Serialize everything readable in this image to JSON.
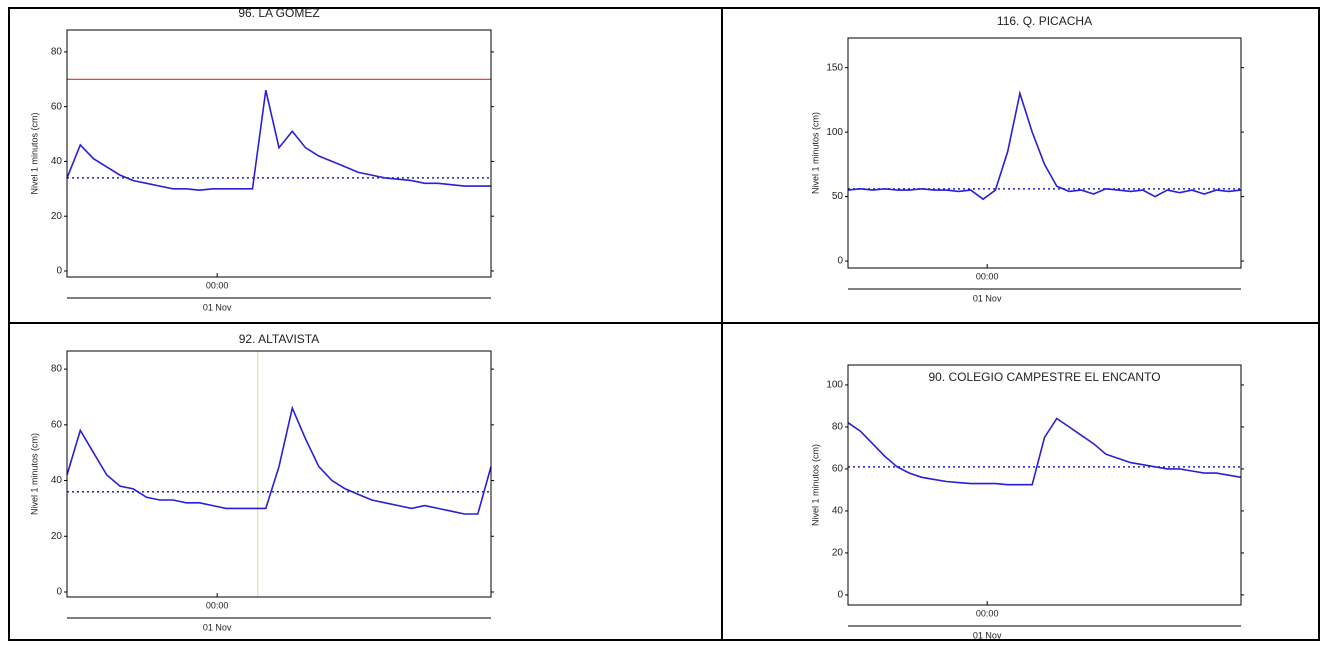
{
  "chart_data": [
    {
      "type": "line",
      "title": "96. LA GOMEZ",
      "y_label": "Nivel 1 minutos (cm)",
      "date_label": "01 Nov",
      "x": [
        -17,
        -15.5,
        -14,
        -12.5,
        -11,
        -9.5,
        -8,
        -6.5,
        -5,
        -3.5,
        -2,
        -0.5,
        1,
        2.5,
        4,
        5.5,
        7,
        8.5,
        10,
        11.5,
        13,
        14.5,
        16,
        17.5,
        19,
        20.5,
        22,
        23.5,
        25,
        26.5,
        28,
        29.5,
        31
      ],
      "series": [
        {
          "color": "#2a1fd6",
          "values": [
            34,
            46,
            41,
            38,
            35,
            33,
            32,
            31,
            30,
            30,
            29.5,
            30,
            30,
            30,
            30,
            66,
            45,
            51,
            45,
            42,
            40,
            38,
            36,
            35,
            34,
            33.5,
            33,
            32,
            32,
            31.5,
            31,
            31,
            31
          ]
        }
      ],
      "ref_lines": [
        {
          "value": 70,
          "color": "#e03020",
          "style": "solid"
        },
        {
          "value": 34,
          "color": "#2222cc",
          "style": "dotted"
        }
      ],
      "xlim": [
        -17,
        31
      ],
      "xticks": [
        {
          "value": 0,
          "label": "00:00"
        }
      ],
      "ylim": [
        -2.2,
        88
      ],
      "yticks": [
        0,
        20,
        40,
        60,
        80
      ]
    },
    {
      "type": "line",
      "title": "116. Q. PICACHA",
      "y_label": "Nivel 1 minutos (cm)",
      "date_label": "01 Nov",
      "x": [
        -17,
        -15.5,
        -14,
        -12.5,
        -11,
        -9.5,
        -8,
        -6.5,
        -5,
        -3.5,
        -2,
        -0.5,
        1,
        2.5,
        4,
        5.5,
        7,
        8.5,
        10,
        11.5,
        13,
        14.5,
        16,
        17.5,
        19,
        20.5,
        22,
        23.5,
        25,
        26.5,
        28,
        29.5,
        31
      ],
      "series": [
        {
          "color": "#2a1fd6",
          "values": [
            55,
            56,
            55,
            56,
            55,
            55,
            56,
            55,
            55,
            54,
            55,
            48,
            55,
            85,
            130,
            100,
            75,
            58,
            54,
            55,
            52,
            56,
            55,
            54,
            55,
            50,
            55,
            53,
            55,
            52,
            55,
            54,
            55
          ]
        }
      ],
      "ref_lines": [
        {
          "value": 56,
          "color": "#2222cc",
          "style": "dotted"
        }
      ],
      "xlim": [
        -17,
        31
      ],
      "xticks": [
        {
          "value": 0,
          "label": "00:00"
        }
      ],
      "ylim": [
        -5.4,
        173
      ],
      "yticks": [
        0,
        50,
        100,
        150
      ]
    },
    {
      "type": "line",
      "title": "92. ALTAVISTA",
      "y_label": "Nivel 1 minutos (cm)",
      "date_label": "01 Nov",
      "x": [
        -17,
        -15.5,
        -14,
        -12.5,
        -11,
        -9.5,
        -8,
        -6.5,
        -5,
        -3.5,
        -2,
        -0.5,
        1,
        2.5,
        4,
        5.5,
        7,
        8.5,
        10,
        11.5,
        13,
        14.5,
        16,
        17.5,
        19,
        20.5,
        22,
        23.5,
        25,
        26.5,
        28,
        29.5,
        31
      ],
      "series": [
        {
          "color": "#2a1fd6",
          "values": [
            42,
            58,
            50,
            42,
            38,
            37,
            34,
            33,
            33,
            32,
            32,
            31,
            30,
            30,
            30,
            30,
            45,
            66,
            55,
            45,
            40,
            37,
            35,
            33,
            32,
            31,
            30,
            31,
            30,
            29,
            28,
            28,
            45
          ]
        }
      ],
      "ref_lines": [
        {
          "value": 36,
          "color": "#2222cc",
          "style": "dotted"
        }
      ],
      "vline": {
        "x": 4.6,
        "color": "#c8e08c"
      },
      "xlim": [
        -17,
        31
      ],
      "xticks": [
        {
          "value": 0,
          "label": "00:00"
        }
      ],
      "ylim": [
        -1.8,
        86.5
      ],
      "yticks": [
        0,
        20,
        40,
        60,
        80
      ]
    },
    {
      "type": "line",
      "title": "90. COLEGIO CAMPESTRE EL ENCANTO",
      "y_label": "Nivel 1 minutos (cm)",
      "date_label": "01 Nov",
      "x": [
        -17,
        -15.5,
        -14,
        -12.5,
        -11,
        -9.5,
        -8,
        -6.5,
        -5,
        -3.5,
        -2,
        -0.5,
        1,
        2.5,
        4,
        5.5,
        7,
        8.5,
        10,
        11.5,
        13,
        14.5,
        16,
        17.5,
        19,
        20.5,
        22,
        23.5,
        25,
        26.5,
        28,
        29.5,
        31
      ],
      "series": [
        {
          "color": "#2a1fd6",
          "values": [
            82,
            78,
            72,
            66,
            61,
            58,
            56,
            55,
            54,
            53.5,
            53,
            53,
            53,
            52.5,
            52.5,
            52.5,
            75,
            84,
            80,
            76,
            72,
            67,
            65,
            63,
            62,
            61,
            60,
            60,
            59,
            58,
            58,
            57,
            56
          ]
        }
      ],
      "ref_lines": [
        {
          "value": 61,
          "color": "#2222cc",
          "style": "dotted"
        }
      ],
      "xlim": [
        -17,
        31
      ],
      "xticks": [
        {
          "value": 0,
          "label": "00:00"
        }
      ],
      "ylim": [
        -4.8,
        109.5
      ],
      "yticks": [
        0,
        20,
        40,
        60,
        80,
        100
      ]
    }
  ]
}
